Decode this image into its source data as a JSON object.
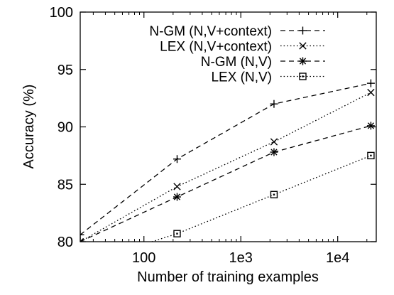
{
  "chart_data": {
    "type": "line",
    "xlabel": "Number of training examples",
    "ylabel": "Accuracy (%)",
    "xscale": "log",
    "xlim": [
      22,
      25000
    ],
    "ylim": [
      80,
      100
    ],
    "x_ticks": [
      {
        "value": 100,
        "label": "100"
      },
      {
        "value": 1000,
        "label": "1e3"
      },
      {
        "value": 10000,
        "label": "1e4"
      }
    ],
    "y_ticks": [
      {
        "value": 80,
        "label": "80"
      },
      {
        "value": 85,
        "label": "85"
      },
      {
        "value": 90,
        "label": "90"
      },
      {
        "value": 95,
        "label": "95"
      },
      {
        "value": 100,
        "label": "100"
      }
    ],
    "grid": false,
    "legend_position": "top-right",
    "series": [
      {
        "name": "N-GM (N,V+context)",
        "marker": "plus",
        "dash": "dashed",
        "x": [
          22,
          220,
          2200,
          22000
        ],
        "y": [
          80.6,
          87.2,
          92.0,
          93.8
        ]
      },
      {
        "name": "LEX (N,V+context)",
        "marker": "x",
        "dash": "dotted",
        "x": [
          22,
          220,
          2200,
          22000
        ],
        "y": [
          80.0,
          84.8,
          88.7,
          93.0
        ]
      },
      {
        "name": "N-GM (N,V)",
        "marker": "star",
        "dash": "dashed",
        "x": [
          22,
          220,
          2200,
          22000
        ],
        "y": [
          80.0,
          83.9,
          87.8,
          90.1
        ]
      },
      {
        "name": "LEX (N,V)",
        "marker": "square",
        "dash": "dotted",
        "x": [
          22,
          220,
          2200,
          22000
        ],
        "y": [
          78.0,
          80.7,
          84.1,
          87.5
        ]
      }
    ]
  }
}
